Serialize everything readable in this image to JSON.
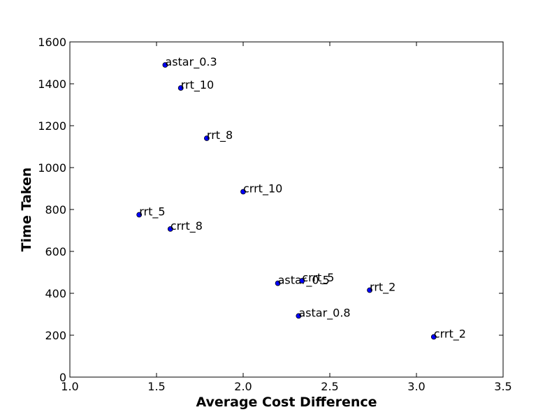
{
  "chart_data": {
    "type": "scatter",
    "title": "",
    "xlabel": "Average Cost Difference",
    "ylabel": "Time Taken",
    "xlim": [
      1.0,
      3.5
    ],
    "ylim": [
      0,
      1600
    ],
    "x_ticks": [
      "1.0",
      "1.5",
      "2.0",
      "2.5",
      "3.0",
      "3.5"
    ],
    "y_ticks": [
      "0",
      "200",
      "400",
      "600",
      "800",
      "1000",
      "1200",
      "1400",
      "1600"
    ],
    "grid": false,
    "marker_color": "#0000ff",
    "points": [
      {
        "label": "astar_0.3",
        "x": 1.55,
        "y": 1490
      },
      {
        "label": "rrt_10",
        "x": 1.64,
        "y": 1380
      },
      {
        "label": "rrt_8",
        "x": 1.79,
        "y": 1140
      },
      {
        "label": "crrt_10",
        "x": 2.0,
        "y": 885
      },
      {
        "label": "rrt_5",
        "x": 1.4,
        "y": 775
      },
      {
        "label": "crrt_8",
        "x": 1.58,
        "y": 707
      },
      {
        "label": "astar_0.5",
        "x": 2.2,
        "y": 448
      },
      {
        "label": "crrt_5",
        "x": 2.34,
        "y": 460
      },
      {
        "label": "rrt_2",
        "x": 2.73,
        "y": 415
      },
      {
        "label": "astar_0.8",
        "x": 2.32,
        "y": 292
      },
      {
        "label": "crrt_2",
        "x": 3.1,
        "y": 192
      }
    ]
  }
}
